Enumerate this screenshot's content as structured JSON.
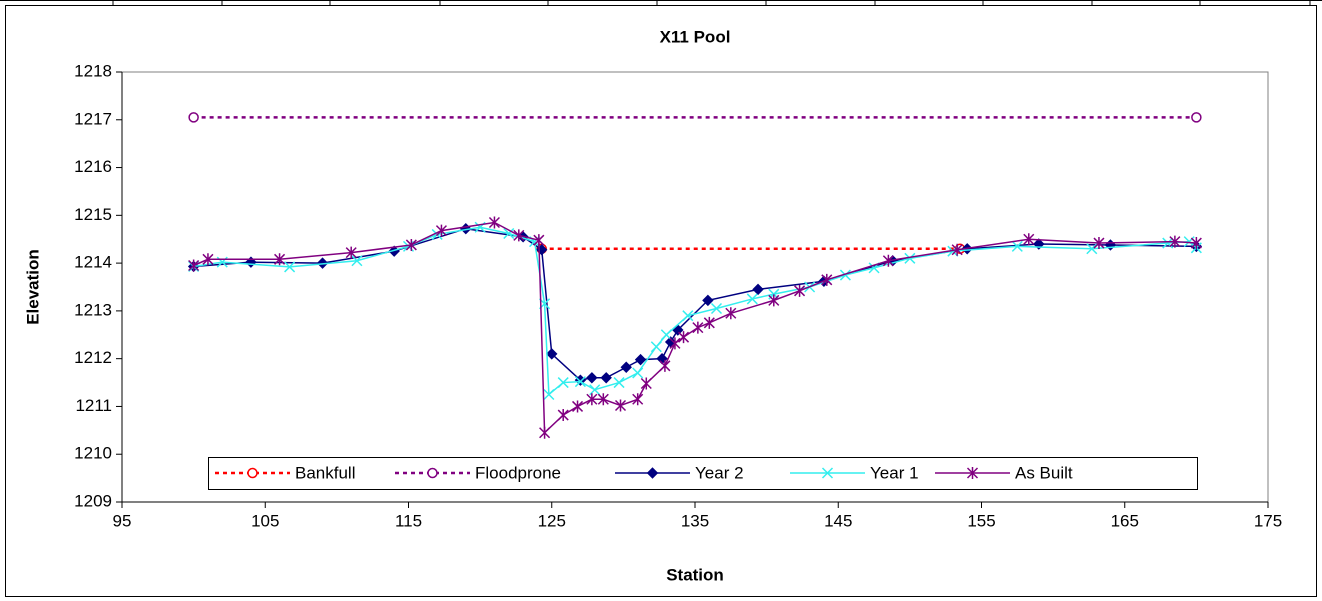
{
  "chart_data": {
    "type": "line",
    "title": "X11 Pool",
    "x_label": "Station",
    "y_label": "Elevation",
    "xlim": [
      95,
      175
    ],
    "xticks": [
      95,
      105,
      115,
      125,
      135,
      145,
      155,
      165,
      175
    ],
    "ylim": [
      1209,
      1218
    ],
    "yticks": [
      1209,
      1210,
      1211,
      1212,
      1213,
      1214,
      1215,
      1216,
      1217,
      1218
    ],
    "legend": "bottom",
    "series": [
      {
        "name": "Bankfull",
        "color": "#ff0000",
        "dash": true,
        "marker": "circle",
        "x": [
          124.3,
          153.5
        ],
        "values": [
          1214.3,
          1214.3
        ]
      },
      {
        "name": "Floodprone",
        "color": "#800080",
        "dash": true,
        "marker": "circle",
        "x": [
          100,
          170
        ],
        "values": [
          1217.05,
          1217.05
        ]
      },
      {
        "name": "Year 2",
        "color": "#000080",
        "dash": false,
        "marker": "diamond",
        "x": [
          100,
          104,
          109,
          114,
          119,
          123,
          124.3,
          125,
          127,
          127.8,
          128.8,
          130.2,
          131.2,
          132.7,
          133.3,
          133.8,
          135.9,
          139.4,
          144,
          148.8,
          154,
          159,
          164,
          170
        ],
        "values": [
          1213.93,
          1214.02,
          1214.0,
          1214.25,
          1214.72,
          1214.55,
          1214.28,
          1212.1,
          1211.55,
          1211.6,
          1211.6,
          1211.82,
          1211.98,
          1212.0,
          1212.35,
          1212.6,
          1213.22,
          1213.45,
          1213.62,
          1214.05,
          1214.3,
          1214.4,
          1214.38,
          1214.35
        ]
      },
      {
        "name": "Year 1",
        "color": "#33eeee",
        "dash": false,
        "marker": "x",
        "x": [
          100,
          102,
          106.7,
          111.4,
          115,
          117,
          120,
          122,
          123.8,
          124.5,
          124.8,
          125.8,
          127,
          128,
          129.7,
          131,
          132.3,
          133,
          134.5,
          136.5,
          139,
          140.5,
          143,
          145.5,
          147.5,
          150,
          153,
          157.5,
          162.7,
          168,
          169.5,
          170
        ],
        "values": [
          1213.93,
          1214.02,
          1213.92,
          1214.05,
          1214.35,
          1214.6,
          1214.75,
          1214.62,
          1214.45,
          1213.15,
          1211.25,
          1211.5,
          1211.52,
          1211.35,
          1211.5,
          1211.7,
          1212.25,
          1212.5,
          1212.9,
          1213.05,
          1213.25,
          1213.35,
          1213.5,
          1213.75,
          1213.9,
          1214.1,
          1214.25,
          1214.35,
          1214.3,
          1214.42,
          1214.45,
          1214.32
        ]
      },
      {
        "name": "As Built",
        "color": "#800080",
        "dash": false,
        "marker": "star",
        "x": [
          100,
          101,
          106,
          111,
          115.2,
          117.3,
          121,
          122.7,
          124.1,
          124.5,
          125.8,
          126.8,
          127.8,
          128.6,
          129.8,
          131,
          131.6,
          132.9,
          133.6,
          134.2,
          135.2,
          136,
          137.5,
          140.5,
          142.3,
          144.2,
          148.5,
          153.3,
          158.3,
          163.2,
          168.5,
          170
        ],
        "values": [
          1213.95,
          1214.08,
          1214.08,
          1214.22,
          1214.38,
          1214.68,
          1214.85,
          1214.58,
          1214.48,
          1210.45,
          1210.82,
          1211.0,
          1211.15,
          1211.15,
          1211.02,
          1211.15,
          1211.48,
          1211.85,
          1212.32,
          1212.45,
          1212.65,
          1212.75,
          1212.95,
          1213.22,
          1213.42,
          1213.65,
          1214.05,
          1214.28,
          1214.5,
          1214.42,
          1214.45,
          1214.42
        ]
      }
    ]
  }
}
